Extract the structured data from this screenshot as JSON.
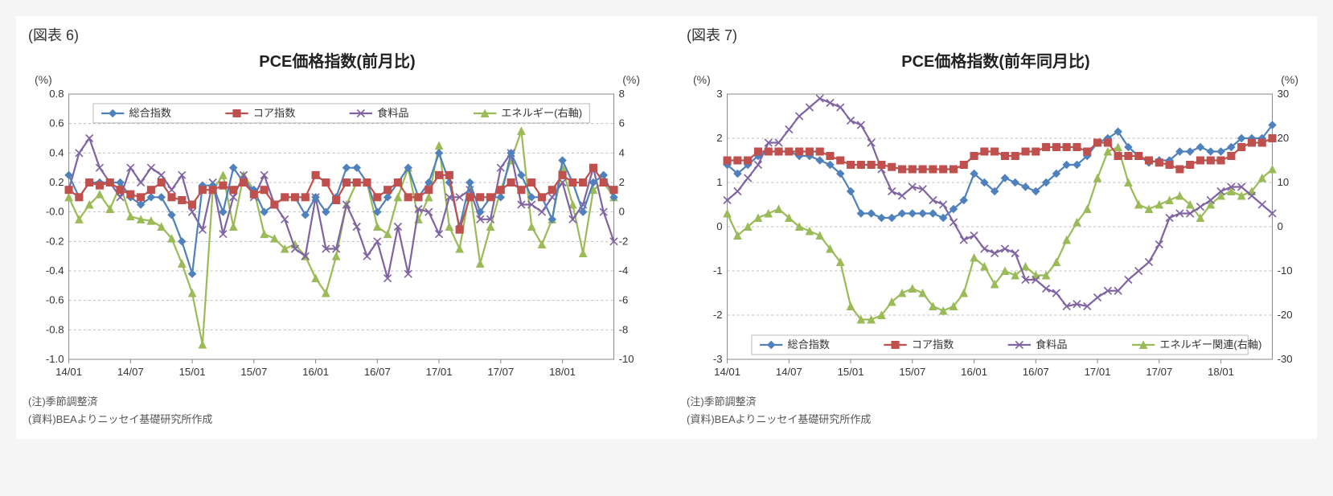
{
  "colors": {
    "grid": "#bfbfbf",
    "border": "#888888",
    "text": "#333333",
    "series": {
      "composite": "#4f81bd",
      "core": "#c0504d",
      "food": "#8064a2",
      "energy": "#9bbb59"
    },
    "bg": "#ffffff"
  },
  "markers": {
    "composite": "diamond",
    "core": "square",
    "food": "x",
    "energy": "triangle"
  },
  "line_width": 2.2,
  "marker_size": 4.5,
  "x_categories": [
    "14/01",
    "14/07",
    "15/01",
    "15/07",
    "16/01",
    "16/07",
    "17/01",
    "17/07",
    "18/01"
  ],
  "chart6": {
    "fig_label": "(図表 6)",
    "title": "PCE価格指数(前月比)",
    "unit_left": "(%)",
    "unit_right": "(%)",
    "yleft": {
      "min": -1.0,
      "max": 0.8,
      "step": 0.2,
      "decimals": 1
    },
    "yright": {
      "min": -10,
      "max": 8,
      "step": 2,
      "decimals": 0
    },
    "legend": [
      {
        "key": "composite",
        "label": "総合指数"
      },
      {
        "key": "core",
        "label": "コア指数"
      },
      {
        "key": "food",
        "label": "食料品"
      },
      {
        "key": "energy",
        "label": "エネルギー(右軸)"
      }
    ],
    "series": {
      "composite": [
        0.25,
        0.1,
        0.2,
        0.2,
        0.2,
        0.2,
        0.1,
        0.05,
        0.1,
        0.1,
        -0.02,
        -0.2,
        -0.42,
        0.18,
        0.18,
        0.0,
        0.3,
        0.2,
        0.15,
        0.0,
        0.05,
        0.1,
        0.1,
        -0.02,
        0.1,
        0.0,
        0.1,
        0.3,
        0.3,
        0.2,
        0.0,
        0.1,
        0.2,
        0.3,
        0.1,
        0.2,
        0.4,
        0.2,
        -0.1,
        0.2,
        0.0,
        0.1,
        0.1,
        0.4,
        0.25,
        0.1,
        0.1,
        -0.05,
        0.35,
        0.2,
        0.0,
        0.2,
        0.25,
        0.1
      ],
      "core": [
        0.15,
        0.1,
        0.2,
        0.18,
        0.2,
        0.15,
        0.12,
        0.1,
        0.15,
        0.2,
        0.1,
        0.08,
        0.05,
        0.15,
        0.15,
        0.18,
        0.15,
        0.2,
        0.12,
        0.15,
        0.05,
        0.1,
        0.1,
        0.1,
        0.25,
        0.2,
        0.08,
        0.2,
        0.2,
        0.2,
        0.1,
        0.15,
        0.2,
        0.1,
        0.1,
        0.15,
        0.25,
        0.25,
        -0.12,
        0.1,
        0.1,
        0.1,
        0.15,
        0.2,
        0.15,
        0.2,
        0.1,
        0.15,
        0.25,
        0.2,
        0.2,
        0.3,
        0.2,
        0.15
      ],
      "food": [
        0.15,
        0.4,
        0.5,
        0.3,
        0.2,
        0.1,
        0.3,
        0.2,
        0.3,
        0.25,
        0.15,
        0.25,
        0.0,
        -0.12,
        0.2,
        -0.15,
        0.1,
        0.25,
        0.1,
        0.25,
        0.05,
        -0.05,
        -0.25,
        -0.3,
        0.1,
        -0.25,
        -0.25,
        0.05,
        -0.1,
        -0.3,
        -0.2,
        -0.45,
        -0.1,
        -0.42,
        0.02,
        0.0,
        -0.15,
        0.1,
        0.1,
        0.15,
        -0.05,
        -0.05,
        0.3,
        0.4,
        0.05,
        0.05,
        0.0,
        0.1,
        0.2,
        -0.05,
        0.05,
        0.3,
        0.0,
        -0.2
      ],
      "energy": [
        1.0,
        -0.5,
        0.5,
        1.2,
        0.2,
        1.8,
        -0.3,
        -0.5,
        -0.6,
        -1.0,
        -1.8,
        -3.5,
        -5.5,
        -9.0,
        1.5,
        2.5,
        -1.0,
        2.5,
        1.5,
        -1.5,
        -1.8,
        -2.5,
        -2.2,
        -3.0,
        -4.5,
        -5.5,
        -3.0,
        0.5,
        2.0,
        2.0,
        -1.0,
        -1.5,
        1.0,
        3.0,
        -0.5,
        1.0,
        4.5,
        -1.0,
        -2.5,
        1.5,
        -3.5,
        -1.0,
        1.5,
        3.5,
        5.5,
        -1.0,
        -2.2,
        -0.5,
        3.0,
        0.5,
        -2.8,
        1.5,
        2.0,
        1.0
      ]
    },
    "notes": [
      "(注)季節調整済",
      "(資料)BEAよりニッセイ基礎研究所作成"
    ]
  },
  "chart7": {
    "fig_label": "(図表 7)",
    "title": "PCE価格指数(前年同月比)",
    "unit_left": "(%)",
    "unit_right": "(%)",
    "yleft": {
      "min": -3,
      "max": 3,
      "step": 1,
      "decimals": 0
    },
    "yright": {
      "min": -30,
      "max": 30,
      "step": 10,
      "decimals": 0
    },
    "legend": [
      {
        "key": "composite",
        "label": "総合指数"
      },
      {
        "key": "core",
        "label": "コア指数"
      },
      {
        "key": "food",
        "label": "食料品"
      },
      {
        "key": "energy",
        "label": "エネルギー関連(右軸)"
      }
    ],
    "series": {
      "composite": [
        1.4,
        1.2,
        1.4,
        1.6,
        1.7,
        1.7,
        1.7,
        1.6,
        1.6,
        1.5,
        1.4,
        1.2,
        0.8,
        0.3,
        0.3,
        0.2,
        0.2,
        0.3,
        0.3,
        0.3,
        0.3,
        0.2,
        0.4,
        0.6,
        1.2,
        1.0,
        0.8,
        1.1,
        1.0,
        0.9,
        0.8,
        1.0,
        1.2,
        1.4,
        1.4,
        1.6,
        1.9,
        2.0,
        2.15,
        1.8,
        1.6,
        1.45,
        1.5,
        1.5,
        1.7,
        1.7,
        1.8,
        1.7,
        1.7,
        1.8,
        2.0,
        2.0,
        2.0,
        2.3
      ],
      "core": [
        1.5,
        1.5,
        1.5,
        1.7,
        1.7,
        1.7,
        1.7,
        1.7,
        1.7,
        1.7,
        1.6,
        1.5,
        1.4,
        1.4,
        1.4,
        1.4,
        1.35,
        1.3,
        1.3,
        1.3,
        1.3,
        1.3,
        1.3,
        1.4,
        1.6,
        1.7,
        1.7,
        1.6,
        1.6,
        1.7,
        1.7,
        1.8,
        1.8,
        1.8,
        1.8,
        1.7,
        1.9,
        1.9,
        1.6,
        1.6,
        1.6,
        1.5,
        1.45,
        1.4,
        1.3,
        1.4,
        1.5,
        1.5,
        1.5,
        1.6,
        1.8,
        1.9,
        1.9,
        2.0
      ],
      "food": [
        0.6,
        0.8,
        1.1,
        1.4,
        1.9,
        1.9,
        2.2,
        2.5,
        2.7,
        2.9,
        2.8,
        2.7,
        2.4,
        2.3,
        1.9,
        1.3,
        0.8,
        0.7,
        0.9,
        0.85,
        0.6,
        0.5,
        0.1,
        -0.3,
        -0.2,
        -0.5,
        -0.6,
        -0.5,
        -0.6,
        -1.2,
        -1.2,
        -1.4,
        -1.5,
        -1.8,
        -1.75,
        -1.8,
        -1.6,
        -1.45,
        -1.45,
        -1.2,
        -1.0,
        -0.8,
        -0.4,
        0.2,
        0.3,
        0.3,
        0.45,
        0.6,
        0.8,
        0.9,
        0.9,
        0.7,
        0.5,
        0.3
      ],
      "energy": [
        3,
        -2,
        0,
        2,
        3,
        4,
        2,
        0,
        -1,
        -2,
        -5,
        -8,
        -18,
        -21,
        -21,
        -20,
        -17,
        -15,
        -14,
        -15,
        -18,
        -19,
        -18,
        -15,
        -7,
        -9,
        -13,
        -10,
        -11,
        -9,
        -11,
        -11,
        -8,
        -3,
        1,
        4,
        11,
        17,
        18,
        10,
        5,
        4,
        5,
        6,
        7,
        5,
        2,
        5,
        7,
        8,
        7,
        8,
        11,
        13
      ]
    },
    "notes": [
      "(注)季節調整済",
      "(資料)BEAよりニッセイ基礎研究所作成"
    ]
  }
}
